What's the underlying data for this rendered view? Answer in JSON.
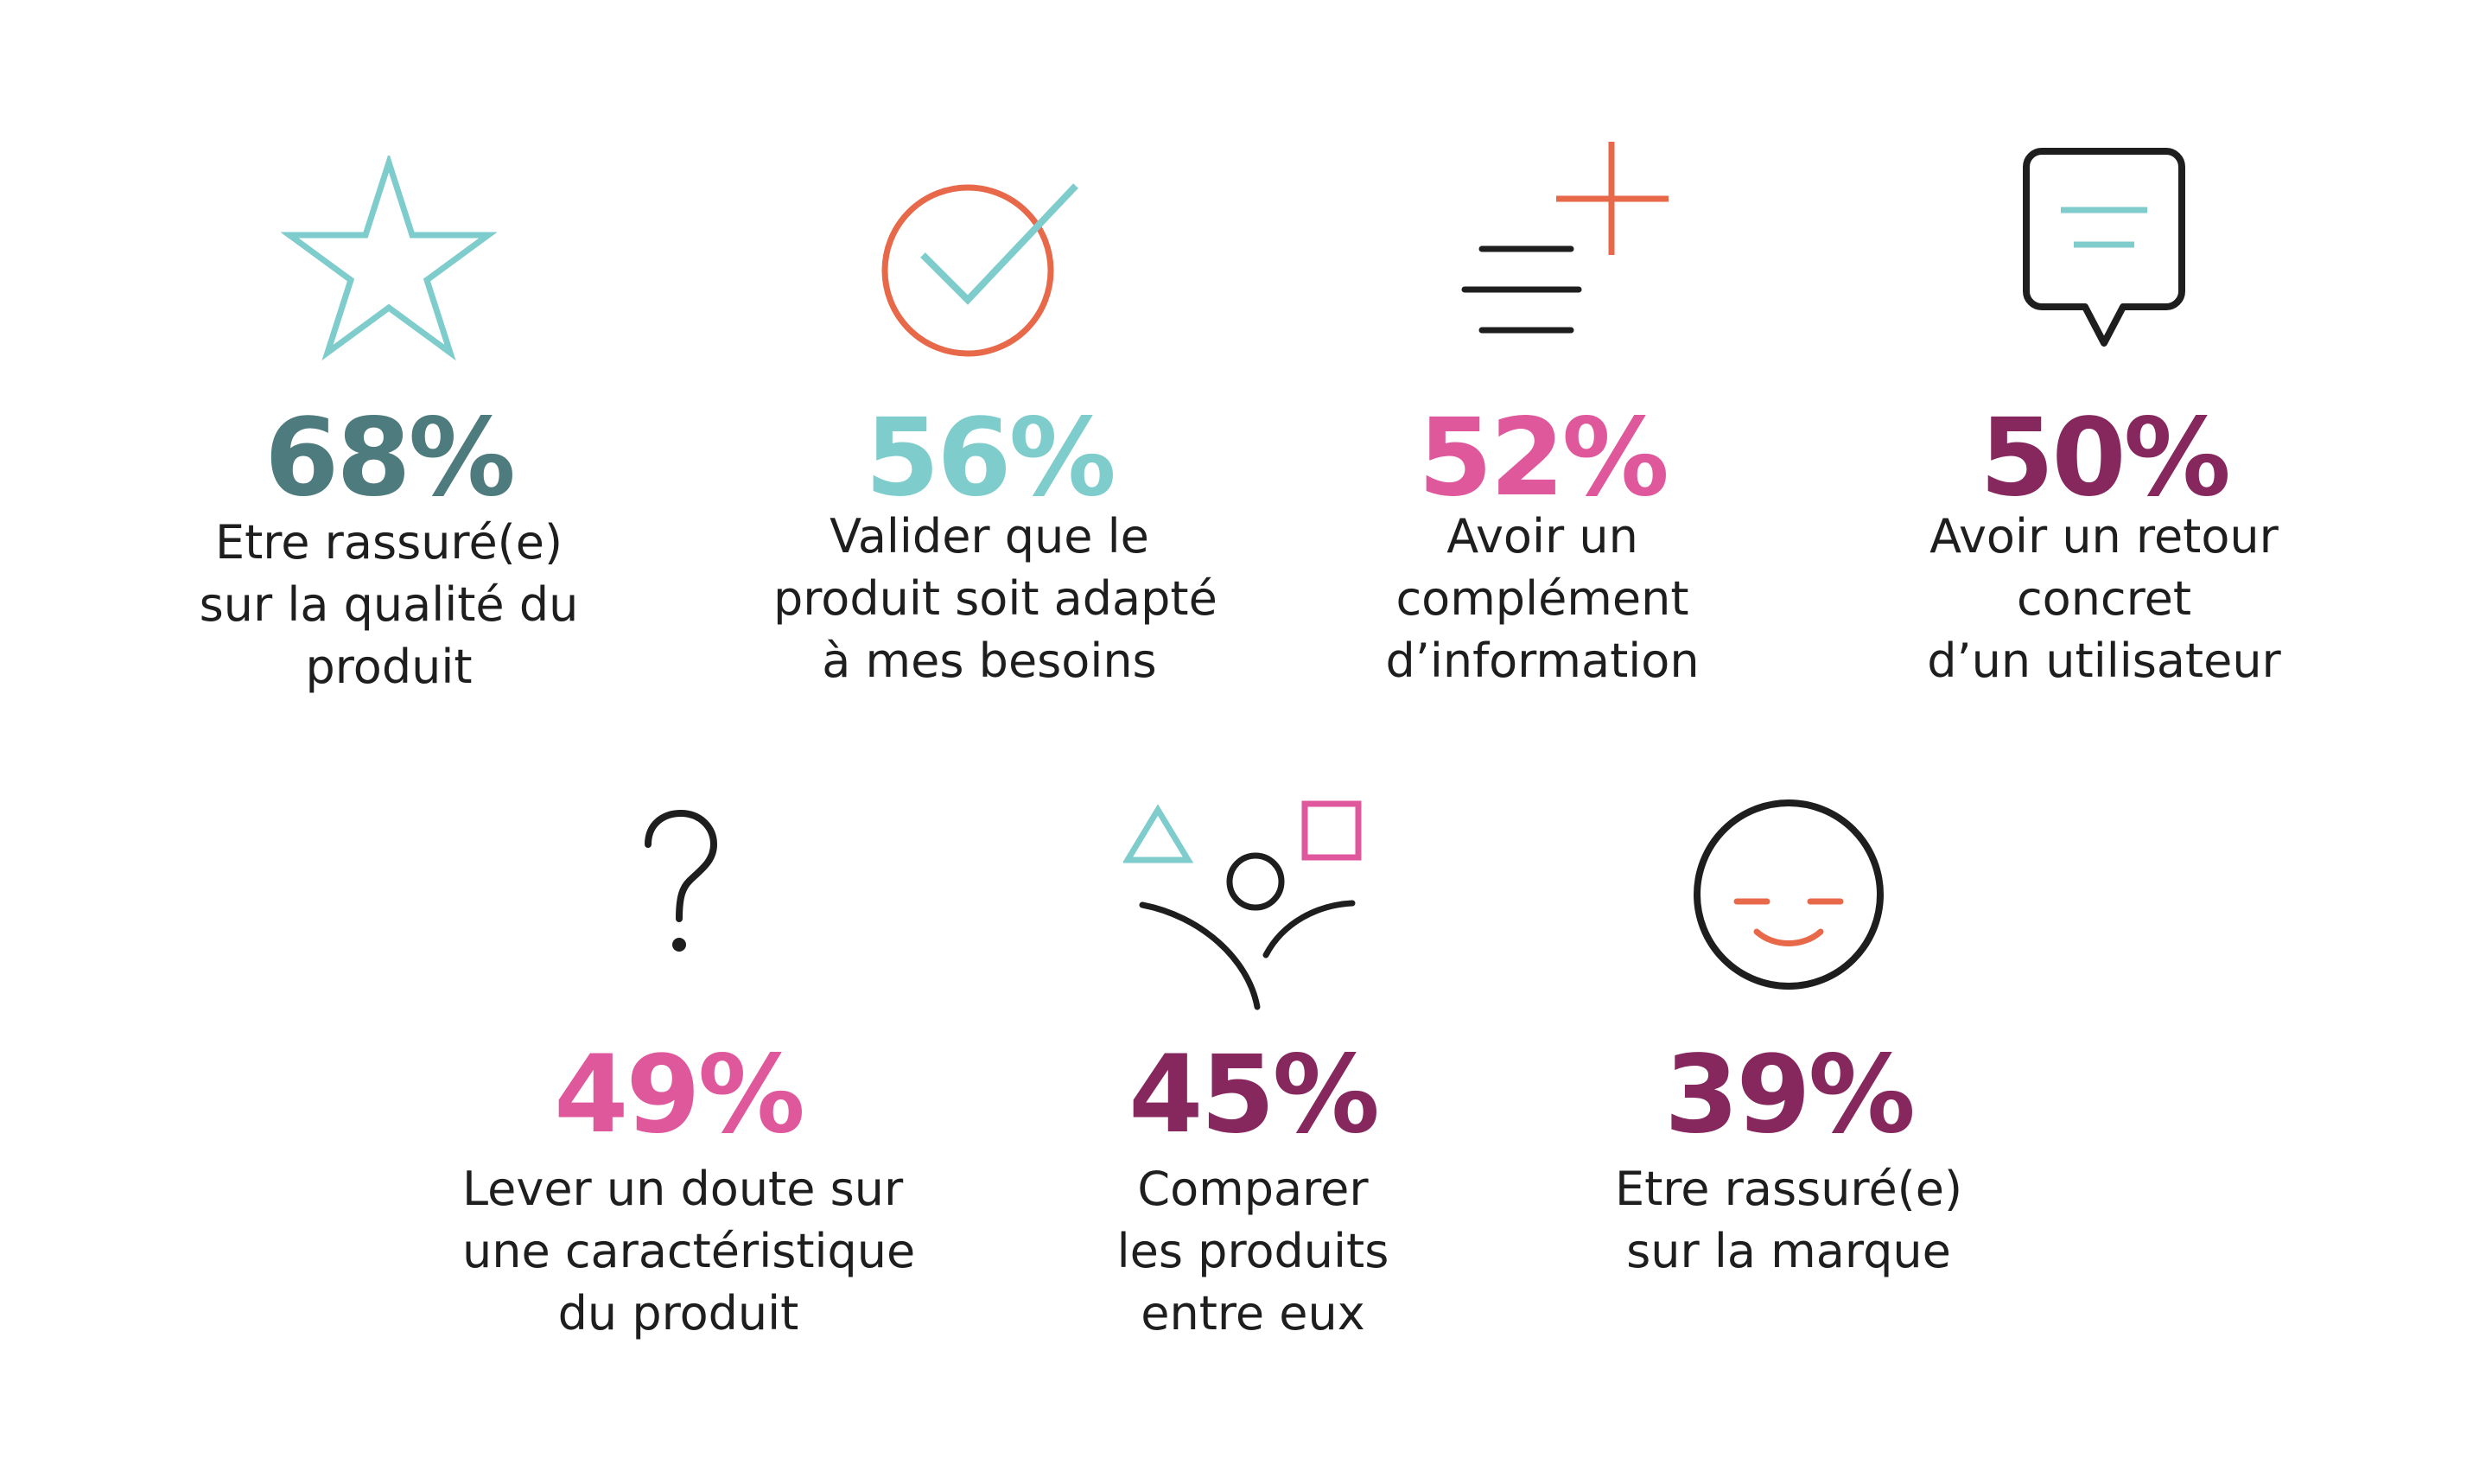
{
  "colors": {
    "teal_dark": "#4e7b7d",
    "teal_light": "#7ecdcc",
    "pink": "#e0589c",
    "plum": "#86275e",
    "orange": "#e8694a",
    "black": "#1e1e1e"
  },
  "stats": [
    {
      "value": "68%",
      "icon": "star-icon",
      "color": "#4e7b7d",
      "lines": [
        "Etre rassuré(e)",
        "sur la qualité du",
        "produit"
      ]
    },
    {
      "value": "56%",
      "icon": "check-circle-icon",
      "color": "#7ecdcc",
      "lines": [
        "Valider que le",
        "produit soit adapté",
        "à mes besoins"
      ]
    },
    {
      "value": "52%",
      "icon": "add-info-icon",
      "color": "#e0589c",
      "lines": [
        "Avoir un",
        "complément",
        "d’information"
      ]
    },
    {
      "value": "50%",
      "icon": "speech-bubble-icon",
      "color": "#86275e",
      "lines": [
        "Avoir un retour",
        "concret",
        "d’un utilisateur"
      ]
    },
    {
      "value": "49%",
      "icon": "question-mark-icon",
      "color": "#e0589c",
      "lines": [
        "Lever un doute sur",
        "une caractéristique",
        "du produit"
      ]
    },
    {
      "value": "45%",
      "icon": "person-shapes-icon",
      "color": "#86275e",
      "lines": [
        "Comparer",
        "les produits",
        "entre eux"
      ]
    },
    {
      "value": "39%",
      "icon": "smiley-icon",
      "color": "#86275e",
      "lines": [
        "Etre rassuré(e)",
        "sur la marque"
      ]
    }
  ]
}
